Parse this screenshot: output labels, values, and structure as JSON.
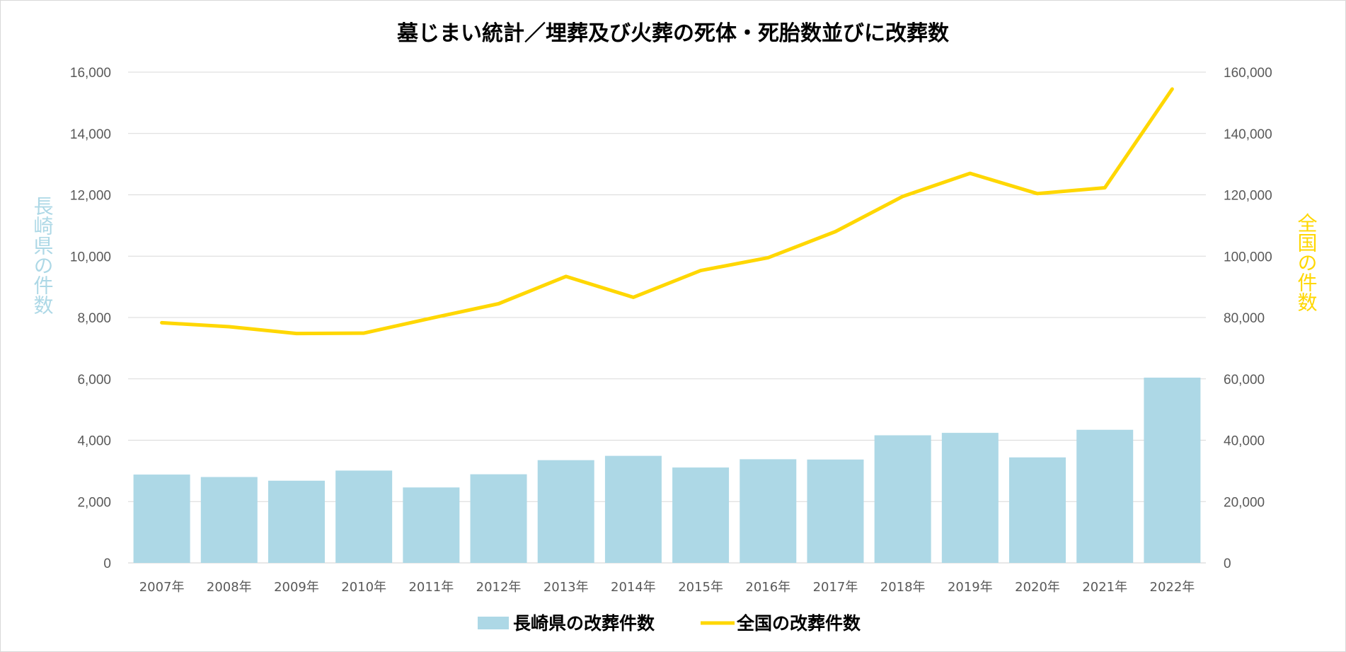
{
  "chart_data": {
    "type": "bar+line",
    "title": "墓じまい統計／埋葬及び火葬の死体・死胎数並びに改葬数",
    "categories": [
      "2007年",
      "2008年",
      "2009年",
      "2010年",
      "2011年",
      "2012年",
      "2013年",
      "2014年",
      "2015年",
      "2016年",
      "2017年",
      "2018年",
      "2019年",
      "2020年",
      "2021年",
      "2022年"
    ],
    "y_left": {
      "label": "長崎県の件数",
      "ylim": [
        0,
        16000
      ],
      "ticks": [
        "0",
        "2,000",
        "4,000",
        "6,000",
        "8,000",
        "10,000",
        "12,000",
        "14,000",
        "16,000"
      ],
      "tick_values": [
        0,
        2000,
        4000,
        6000,
        8000,
        10000,
        12000,
        14000,
        16000
      ]
    },
    "y_right": {
      "label": "全国の件数",
      "ylim": [
        0,
        160000
      ],
      "ticks": [
        "0",
        "20,000",
        "40,000",
        "60,000",
        "80,000",
        "100,000",
        "120,000",
        "140,000",
        "160,000"
      ],
      "tick_values": [
        0,
        20000,
        40000,
        60000,
        80000,
        100000,
        120000,
        140000,
        160000
      ]
    },
    "series": [
      {
        "name": "長崎県の改葬件数",
        "type": "bar",
        "axis": "left",
        "color": "#add8e6",
        "values": [
          2880,
          2800,
          2680,
          3010,
          2460,
          2890,
          3350,
          3490,
          3110,
          3380,
          3370,
          4160,
          4240,
          3440,
          4340,
          6040
        ]
      },
      {
        "name": "全国の改葬件数",
        "type": "line",
        "axis": "right",
        "color": "#ffd700",
        "values": [
          78300,
          77000,
          74800,
          74900,
          79800,
          84500,
          93400,
          86600,
          95300,
          99500,
          108000,
          119500,
          127000,
          120400,
          122300,
          154500
        ]
      }
    ],
    "grid": true,
    "legend_position": "bottom-center"
  }
}
